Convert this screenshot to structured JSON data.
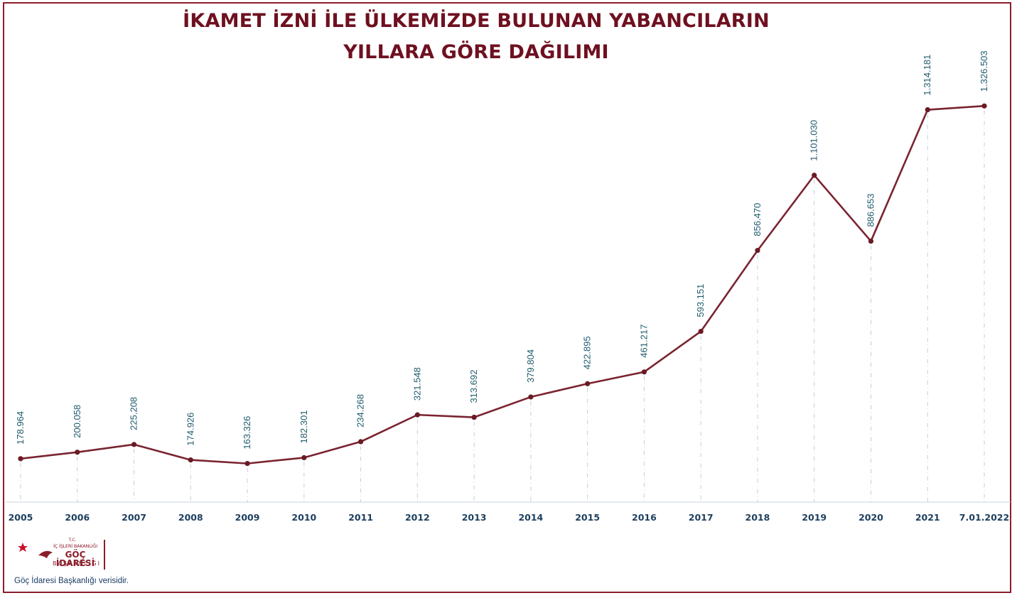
{
  "chart_data": {
    "type": "line",
    "title_line1": "İKAMET İZNİ İLE ÜLKEMİZDE BULUNAN YABANCILARIN",
    "title_line2": "YILLARA GÖRE DAĞILIMI",
    "xlabel": "",
    "ylabel": "",
    "grid": false,
    "categories": [
      "2005",
      "2006",
      "2007",
      "2008",
      "2009",
      "2010",
      "2011",
      "2012",
      "2013",
      "2014",
      "2015",
      "2016",
      "2017",
      "2018",
      "2019",
      "2020",
      "2021",
      "7.01.2022"
    ],
    "values": [
      178964,
      200058,
      225208,
      174926,
      163326,
      182301,
      234268,
      321548,
      313692,
      379804,
      422895,
      461217,
      593151,
      856470,
      1101030,
      886653,
      1314181,
      1326503
    ],
    "value_labels": [
      "178.964",
      "200.058",
      "225.208",
      "174.926",
      "163.326",
      "182.301",
      "234.268",
      "321.548",
      "313.692",
      "379.804",
      "422.895",
      "461.217",
      "593.151",
      "856.470",
      "1.101.030",
      "886.653",
      "1.314.181",
      "1.326.503"
    ],
    "line_color": "#7a2430",
    "marker_color": "#6a1a24",
    "label_color": "#1f5c6b"
  },
  "logo": {
    "tc": "T.C.",
    "ministry": "İÇ İŞLERİ BAKANLIĞI",
    "name": "GÖÇ İDARESİ",
    "sub": "BAŞKANLIĞI"
  },
  "source_note": "Göç İdaresi Başkanlığı verisidir."
}
